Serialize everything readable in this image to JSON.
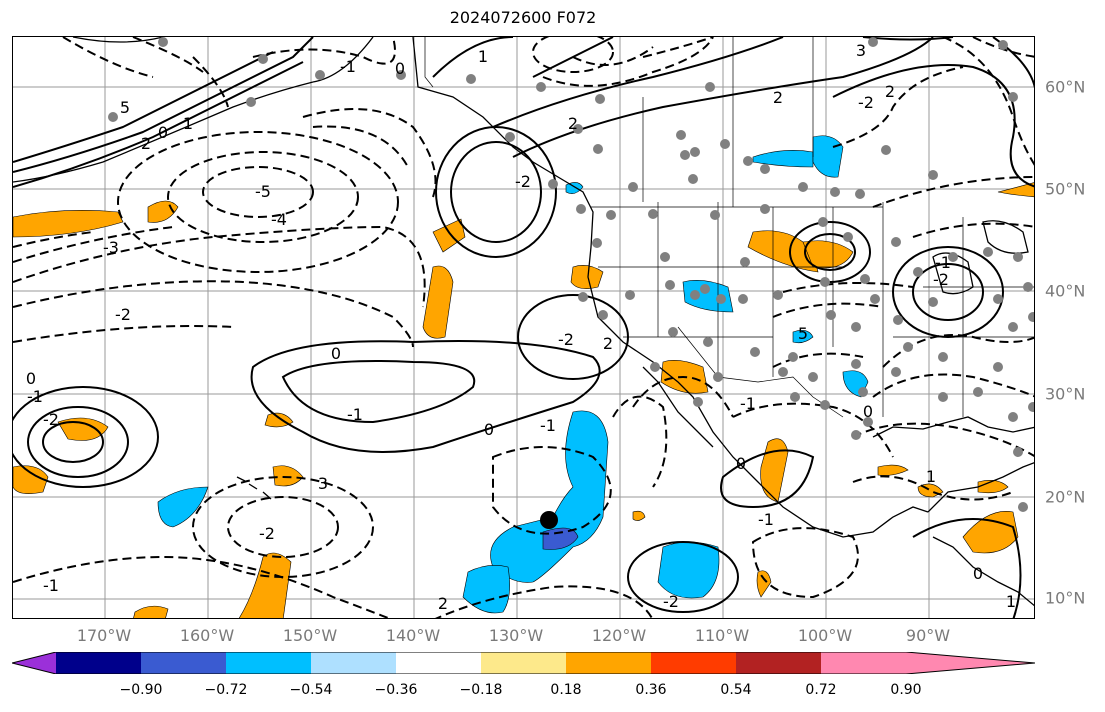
{
  "title": "2024072600 F072",
  "lon_labels": [
    "170°W",
    "160°W",
    "150°W",
    "140°W",
    "130°W",
    "120°W",
    "110°W",
    "100°W",
    "90°W"
  ],
  "lat_labels": [
    "60°N",
    "50°N",
    "40°N",
    "30°N",
    "20°N",
    "10°N"
  ],
  "contour_labels": [
    "5",
    "2",
    "0",
    "1",
    "-5",
    "-4",
    "-3",
    "-2",
    "-1",
    "0",
    "1",
    "2",
    "-2",
    "0",
    "-1",
    "-1",
    "0",
    "-2",
    "0",
    "-1",
    "-2",
    "3",
    "-2",
    "-1",
    "2",
    "-2",
    "-1",
    "0",
    "-1",
    "0",
    "1",
    "2",
    "5",
    "2",
    "3",
    "-2",
    "2",
    "-1",
    "-2",
    "0",
    "1"
  ],
  "colorbar": {
    "ticks": [
      "−0.90",
      "−0.72",
      "−0.54",
      "−0.36",
      "−0.18",
      "0.18",
      "0.36",
      "0.54",
      "0.72",
      "0.90"
    ],
    "colors": [
      "#9b30d9",
      "#00008b",
      "#3a5bd1",
      "#00bfff",
      "#aee0ff",
      "#ffffff",
      "#fde98b",
      "#ffa500",
      "#ff3c00",
      "#b22222",
      "#ff88b0"
    ]
  },
  "marker_color": "#000000",
  "station_color": "#808080"
}
